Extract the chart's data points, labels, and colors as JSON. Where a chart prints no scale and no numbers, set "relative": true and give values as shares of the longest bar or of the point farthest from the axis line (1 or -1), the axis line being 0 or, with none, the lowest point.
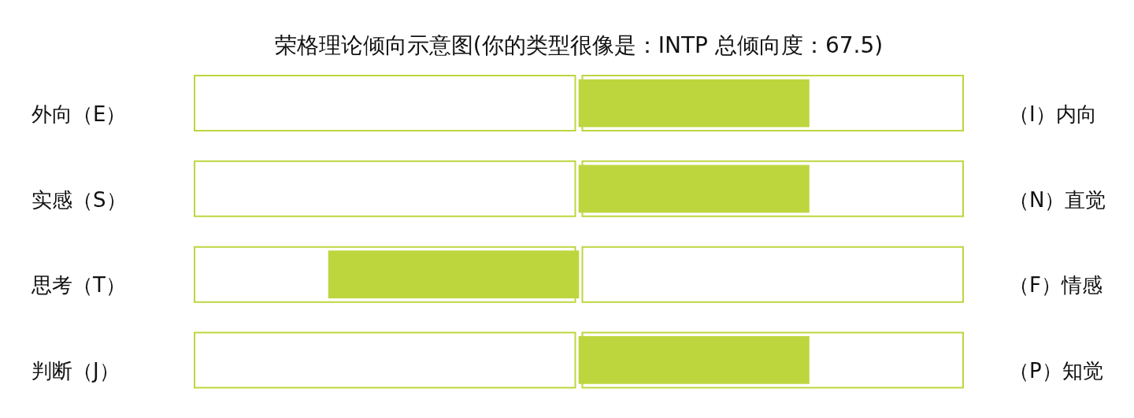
{
  "chart_data": {
    "type": "bar",
    "orientation": "horizontal",
    "relative": true,
    "title": "荣格理论倾向示意图(你的类型很像是：INTP 总倾向度：67.5)",
    "categories": [
      "外向（E）",
      "实感（S）",
      "思考（T）",
      "判断（J）"
    ],
    "y2_categories": [
      "（I）内向",
      "（N）直觉",
      "（F）情感",
      "（P）知觉"
    ],
    "values": [
      0.92,
      0.92,
      -1,
      0.92
    ],
    "color": "#bdd63e"
  }
}
